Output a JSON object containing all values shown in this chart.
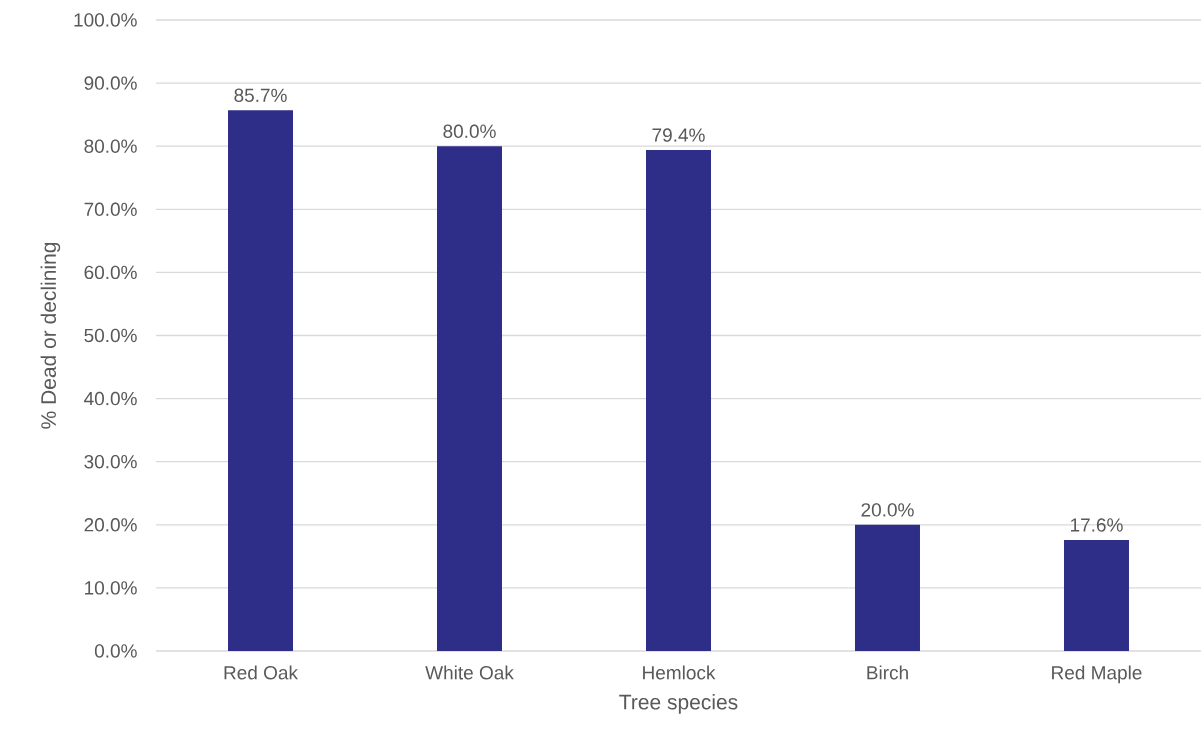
{
  "chart_data": {
    "type": "bar",
    "xlabel": "Tree species",
    "ylabel": "% Dead or declining",
    "categories": [
      "Red Oak",
      "White Oak",
      "Hemlock",
      "Birch",
      "Red Maple"
    ],
    "values": [
      85.7,
      80.0,
      79.4,
      20.0,
      17.6
    ],
    "value_labels": [
      "85.7%",
      "80.0%",
      "79.4%",
      "20.0%",
      "17.6%"
    ],
    "color": "#2e2d88",
    "ylim": [
      0,
      100
    ],
    "yticks": [
      {
        "value": 0,
        "label": "0.0%"
      },
      {
        "value": 10,
        "label": "10.0%"
      },
      {
        "value": 20,
        "label": "20.0%"
      },
      {
        "value": 30,
        "label": "30.0%"
      },
      {
        "value": 40,
        "label": "40.0%"
      },
      {
        "value": 50,
        "label": "50.0%"
      },
      {
        "value": 60,
        "label": "60.0%"
      },
      {
        "value": 70,
        "label": "70.0%"
      },
      {
        "value": 80,
        "label": "80.0%"
      },
      {
        "value": 90,
        "label": "90.0%"
      },
      {
        "value": 100,
        "label": "100.0%"
      }
    ],
    "grid": "y"
  }
}
